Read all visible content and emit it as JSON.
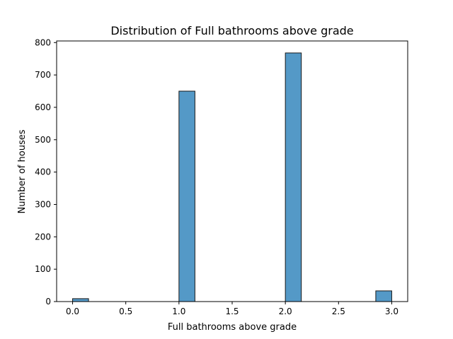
{
  "chart_data": {
    "type": "bar",
    "title": "Distribution of Full bathrooms above grade",
    "xlabel": "Full bathrooms above grade",
    "ylabel": "Number of houses",
    "xlim": [
      -0.15,
      3.15
    ],
    "ylim": [
      0,
      805
    ],
    "xticks": [
      0.0,
      0.5,
      1.0,
      1.5,
      2.0,
      2.5,
      3.0
    ],
    "xtick_labels": [
      "0.0",
      "0.5",
      "1.0",
      "1.5",
      "2.0",
      "2.5",
      "3.0"
    ],
    "yticks": [
      0,
      100,
      200,
      300,
      400,
      500,
      600,
      700,
      800
    ],
    "ytick_labels": [
      "0",
      "100",
      "200",
      "300",
      "400",
      "500",
      "600",
      "700",
      "800"
    ],
    "bins": [
      {
        "start": 0.0,
        "end": 0.15,
        "count": 9
      },
      {
        "start": 1.0,
        "end": 1.15,
        "count": 650
      },
      {
        "start": 2.0,
        "end": 2.15,
        "count": 768
      },
      {
        "start": 2.85,
        "end": 3.0,
        "count": 33
      }
    ],
    "bar_color": "#5499c7",
    "edge_color": "#1a1a1a",
    "grid": false,
    "legend": "none"
  }
}
